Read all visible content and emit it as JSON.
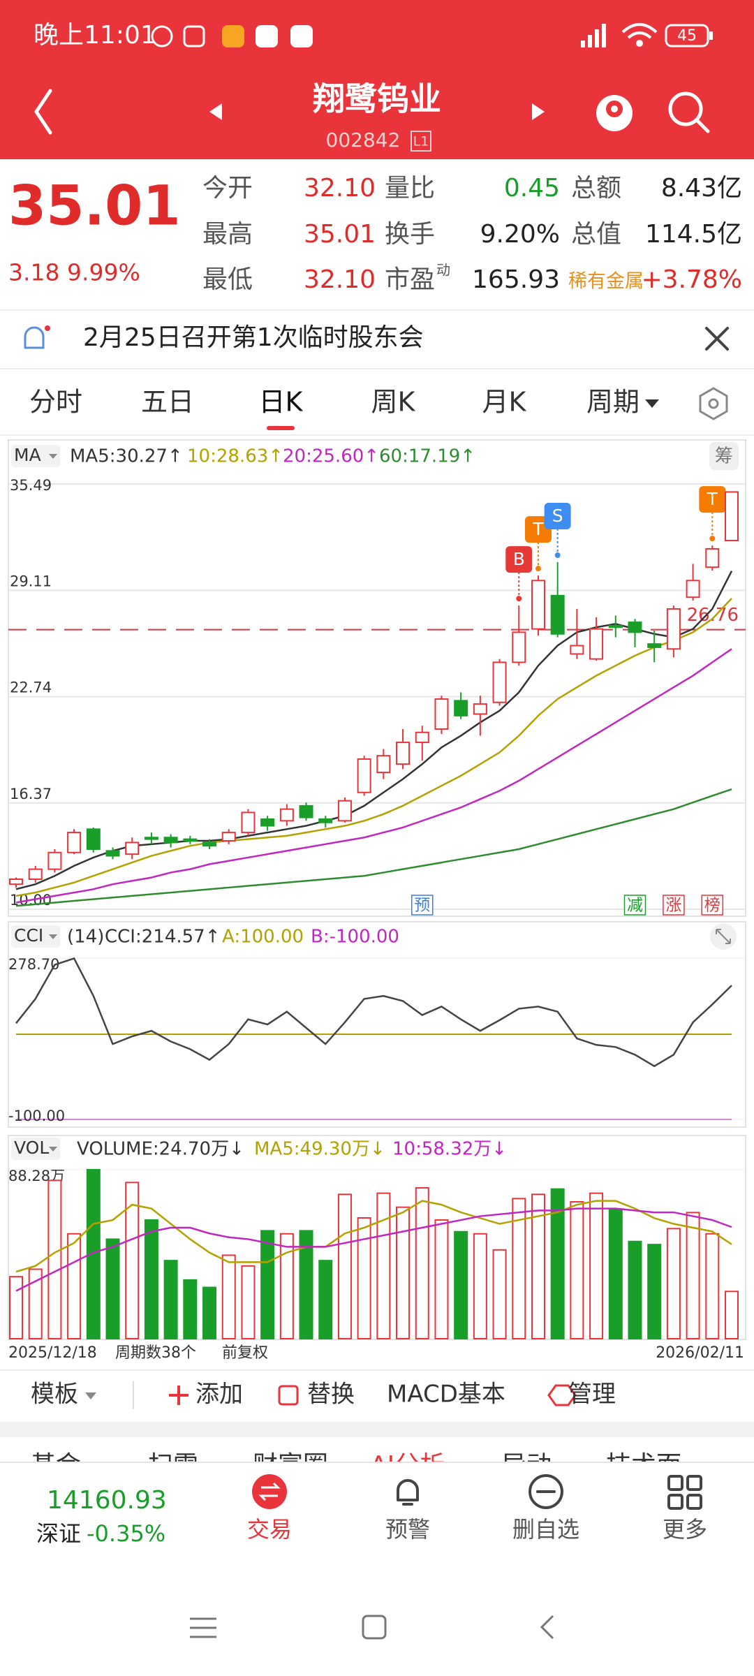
{
  "status_bar": {
    "time": "晚上11:01",
    "battery": "45"
  },
  "header": {
    "title": "翔鹭钨业",
    "code": "002842",
    "level": "L1"
  },
  "quote": {
    "price": "35.01",
    "change": "3.18",
    "change_pct": "9.99%",
    "rows": [
      [
        {
          "label": "今开",
          "value": "32.10"
        },
        {
          "label": "量比",
          "value": "0.45"
        },
        {
          "label": "总额",
          "value": "8.43亿"
        }
      ],
      [
        {
          "label": "最高",
          "value": "35.01"
        },
        {
          "label": "换手",
          "value": "9.20%"
        },
        {
          "label": "总值",
          "value": "114.5亿"
        }
      ],
      [
        {
          "label": "最低",
          "value": "32.10"
        },
        {
          "label": "市盈",
          "sup": "动",
          "value": "165.93"
        },
        {
          "label": "稀有金属",
          "value": "+3.78%"
        }
      ]
    ]
  },
  "notice": "2月25日召开第1次临时股东会",
  "tabs": [
    "分时",
    "五日",
    "日K",
    "周K",
    "月K",
    "周期"
  ],
  "active_tab": 2,
  "chart_data": [
    {
      "type": "candlestick",
      "button": "MA",
      "chip": "筹",
      "up_color": "#e8343a",
      "down_color": "#1a9e2a",
      "ylim": [
        10,
        35.49
      ],
      "yticks": [
        35.49,
        29.11,
        22.74,
        16.37,
        {
          "value": 10,
          "label": "10.00"
        }
      ],
      "open": [
        11.5,
        11.8,
        12.4,
        13.4,
        14.8,
        13.5,
        13.3,
        14.3,
        14.3,
        14.2,
        14.0,
        14.1,
        14.6,
        15.4,
        15.3,
        16.2,
        15.4,
        15.3,
        17.0,
        18.2,
        18.7,
        20.0,
        20.8,
        22.5,
        21.7,
        22.4,
        24.8,
        26.8,
        28.8,
        25.3,
        25.0,
        27.0,
        27.2,
        25.9,
        25.6,
        28.7,
        30.5,
        32.1
      ],
      "high": [
        11.9,
        12.6,
        13.6,
        14.8,
        14.9,
        13.7,
        14.3,
        14.6,
        14.5,
        14.4,
        14.2,
        14.8,
        16.0,
        15.6,
        16.3,
        16.4,
        15.6,
        16.7,
        19.2,
        19.6,
        20.8,
        21.0,
        22.8,
        23.0,
        22.8,
        25.0,
        28.2,
        30.0,
        30.8,
        28.0,
        27.5,
        27.6,
        27.4,
        26.7,
        28.2,
        30.7,
        31.8,
        35.01
      ],
      "low": [
        11.3,
        11.6,
        12.2,
        13.3,
        13.4,
        13.0,
        13.0,
        13.9,
        13.7,
        13.9,
        13.6,
        13.9,
        14.4,
        14.7,
        15.0,
        15.3,
        14.9,
        15.2,
        16.8,
        17.8,
        18.4,
        18.9,
        20.5,
        21.4,
        20.4,
        22.2,
        24.6,
        26.4,
        26.3,
        25.0,
        24.9,
        26.3,
        25.7,
        24.8,
        25.1,
        28.5,
        30.3,
        32.1
      ],
      "close": [
        11.8,
        12.4,
        13.4,
        14.6,
        13.6,
        13.2,
        14.0,
        14.2,
        14.0,
        14.1,
        13.8,
        14.6,
        15.8,
        15.0,
        16.0,
        15.5,
        15.2,
        16.5,
        19.0,
        19.2,
        20.0,
        20.6,
        22.6,
        21.6,
        22.3,
        24.8,
        26.6,
        29.7,
        26.5,
        25.8,
        26.8,
        26.9,
        26.6,
        25.7,
        28.0,
        29.7,
        31.6,
        35.01
      ],
      "series": [
        {
          "name": "MA5:30.27↑",
          "color": "#333333",
          "values": [
            11.2,
            11.5,
            12.0,
            12.6,
            13.1,
            13.5,
            13.8,
            13.9,
            14.0,
            14.1,
            14.1,
            14.2,
            14.4,
            14.6,
            14.8,
            15.0,
            15.3,
            15.6,
            16.2,
            17.0,
            17.8,
            18.7,
            19.7,
            20.4,
            21.2,
            21.9,
            23.0,
            24.6,
            25.8,
            26.6,
            26.9,
            27.1,
            26.8,
            26.5,
            26.3,
            26.8,
            28.0,
            30.27
          ]
        },
        {
          "name": "10:28.63↑",
          "color": "#b3a100",
          "values": [
            10.8,
            11.0,
            11.3,
            11.6,
            12.0,
            12.4,
            12.8,
            13.2,
            13.5,
            13.8,
            14.0,
            14.1,
            14.2,
            14.3,
            14.4,
            14.6,
            14.8,
            15.0,
            15.3,
            15.7,
            16.2,
            16.8,
            17.4,
            18.0,
            18.7,
            19.4,
            20.4,
            21.6,
            22.6,
            23.3,
            24.0,
            24.6,
            25.2,
            25.7,
            26.1,
            26.6,
            27.4,
            28.63
          ]
        },
        {
          "name": "20:25.60↑",
          "color": "#c026c0",
          "values": [
            10.4,
            10.6,
            10.8,
            11.0,
            11.2,
            11.5,
            11.7,
            11.9,
            12.2,
            12.4,
            12.7,
            12.9,
            13.1,
            13.3,
            13.5,
            13.7,
            13.9,
            14.1,
            14.3,
            14.6,
            14.9,
            15.3,
            15.7,
            16.1,
            16.6,
            17.1,
            17.7,
            18.4,
            19.1,
            19.8,
            20.5,
            21.2,
            21.9,
            22.6,
            23.3,
            24.0,
            24.8,
            25.6
          ]
        },
        {
          "name": "60:17.19↑",
          "color": "#2e8b2e",
          "values": [
            10.2,
            10.3,
            10.4,
            10.5,
            10.6,
            10.7,
            10.8,
            10.9,
            11.0,
            11.1,
            11.2,
            11.3,
            11.4,
            11.5,
            11.6,
            11.7,
            11.8,
            11.9,
            12.0,
            12.2,
            12.4,
            12.6,
            12.8,
            13.0,
            13.2,
            13.4,
            13.6,
            13.9,
            14.2,
            14.5,
            14.8,
            15.1,
            15.4,
            15.7,
            16.0,
            16.4,
            16.8,
            17.19
          ]
        }
      ],
      "reference": {
        "value": 26.76,
        "color": "#d9363e"
      },
      "signals": [
        null,
        null,
        null,
        null,
        null,
        null,
        null,
        null,
        null,
        null,
        null,
        null,
        null,
        null,
        null,
        null,
        null,
        null,
        null,
        null,
        null,
        null,
        null,
        null,
        null,
        null,
        {
          "label": "B",
          "color": "#e53935"
        },
        {
          "label": "T",
          "color": "#f57c00"
        },
        {
          "label": "S",
          "color": "#3d8ef0"
        },
        null,
        null,
        null,
        null,
        null,
        null,
        null,
        {
          "label": "T",
          "color": "#f57c00"
        },
        null
      ],
      "events": [
        null,
        null,
        null,
        null,
        null,
        null,
        null,
        null,
        null,
        null,
        null,
        null,
        null,
        null,
        null,
        null,
        null,
        null,
        null,
        null,
        null,
        {
          "label": "预",
          "color": "#3b7fd9"
        },
        null,
        null,
        null,
        null,
        null,
        null,
        null,
        null,
        null,
        null,
        {
          "label": "减",
          "color": "#1a9e2a"
        },
        null,
        {
          "label": "涨",
          "color": "#e8343a"
        },
        null,
        {
          "label": "榜",
          "color": "#e8343a"
        },
        null
      ]
    },
    {
      "type": "line",
      "button": "CCI",
      "period": "(14)",
      "ylim": [
        -100,
        278.7
      ],
      "yticks": [
        {
          "value": 278.7,
          "label": "278.70"
        },
        {
          "value": -100,
          "label": "-100.00"
        }
      ],
      "series": [
        {
          "name": "CCI:214.57↑",
          "color": "#444444",
          "values": [
            125.7,
            183,
            263,
            278,
            190,
            77,
            95,
            108,
            83,
            65,
            40,
            77,
            135,
            123,
            153,
            115,
            77,
            128,
            183,
            190,
            178,
            145,
            165,
            135,
            108,
            133,
            160,
            165,
            153,
            90,
            75,
            70,
            52,
            25,
            52,
            128,
            170,
            214.57
          ]
        }
      ],
      "reference_lines": [
        {
          "name": "A:100.00",
          "value": 100,
          "color": "#b3a100"
        },
        {
          "name": "B:-100.00",
          "value": -100,
          "color": "#c026c0"
        }
      ]
    },
    {
      "type": "bar",
      "button": "VOL",
      "label": "VOLUME:24.70万↓",
      "ylim": [
        0,
        88.28
      ],
      "yticks": [
        {
          "value": 88.28,
          "label": "88.28万"
        }
      ],
      "values": [
        32.4,
        36.3,
        82.7,
        54.8,
        88.28,
        52,
        81.6,
        62,
        40.8,
        30.7,
        26.8,
        43.6,
        38,
        56.4,
        54.8,
        56.4,
        40.8,
        75.4,
        63.1,
        76,
        68.7,
        78.8,
        62,
        55.9,
        54.8,
        46.4,
        73.2,
        75.4,
        78.2,
        71.5,
        76,
        67.6,
        50.8,
        49.2,
        57.5,
        65.9,
        54.8,
        24.7
      ],
      "series": [
        {
          "name": "MA5:49.30万↓",
          "color": "#b3a100",
          "values": [
            35,
            38,
            45,
            50,
            60,
            62,
            70,
            68,
            60,
            52,
            45,
            40,
            40,
            40,
            45,
            48,
            48,
            55,
            58,
            62,
            66,
            72,
            70,
            66,
            63,
            60,
            62,
            64,
            66,
            70,
            72,
            72,
            68,
            63,
            60,
            58,
            56,
            49.3
          ]
        },
        {
          "name": "10:58.32万↓",
          "color": "#c026c0",
          "values": [
            25,
            30,
            35,
            40,
            45,
            48,
            52,
            56,
            58,
            58,
            55,
            53,
            52,
            50,
            48,
            48,
            48,
            50,
            52,
            54,
            56,
            58,
            60,
            62,
            64,
            65,
            66,
            67,
            67,
            68,
            68,
            68,
            67,
            66,
            66,
            64,
            62,
            58.32
          ]
        }
      ]
    }
  ],
  "chart_footer": {
    "start": "2025/12/18",
    "period_count": "周期数38个",
    "adjust": "前复权",
    "end": "2026/02/11"
  },
  "toolbar": [
    "模板",
    "添加",
    "替换",
    "MACD基本",
    "管理"
  ],
  "sub_tabs": [
    "基金",
    "扫雷",
    "财富圈",
    "AI分析",
    "异动",
    "技术面"
  ],
  "bottom_nav": {
    "index_value": "14160.93",
    "index_name": "深证",
    "index_change": "-0.35%",
    "items": [
      "交易",
      "预警",
      "删自选",
      "更多"
    ]
  }
}
